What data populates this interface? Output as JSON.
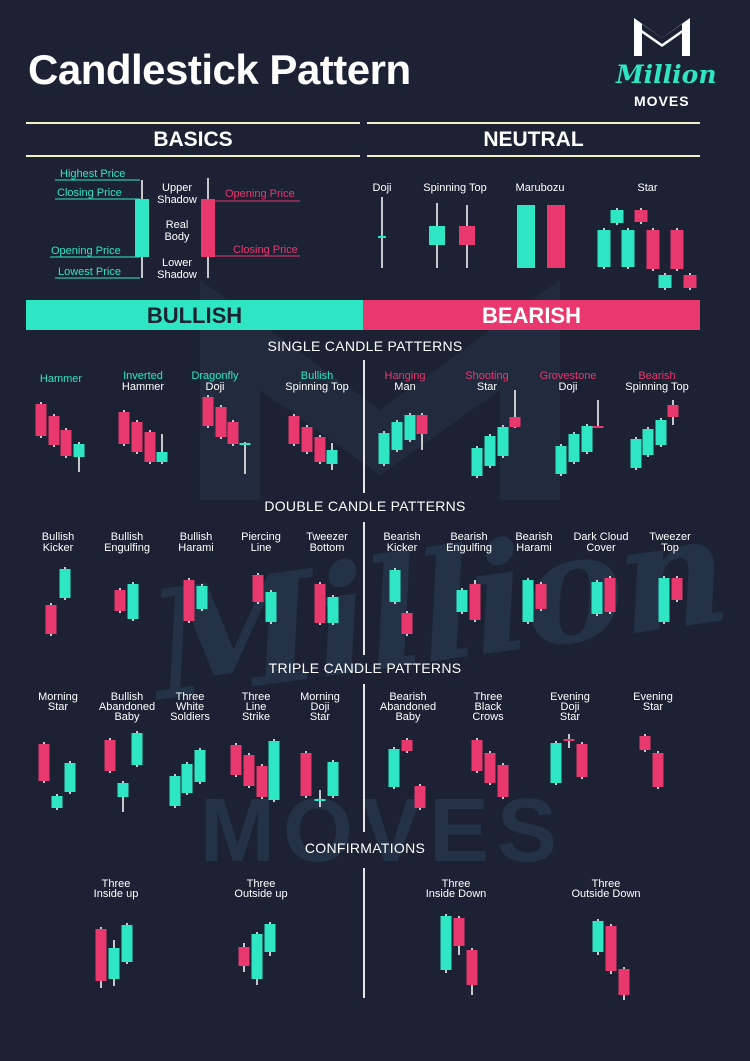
{
  "title": "Candlestick Pattern",
  "brand": {
    "script": "Million",
    "word": "MOVES"
  },
  "colors": {
    "bull": "#2ee6c4",
    "bear": "#e8386e",
    "background": "#1c2233",
    "wick": "#ffffff"
  },
  "basics": {
    "heading": "BASICS",
    "left_labels": [
      "Highest Price",
      "Closing Price",
      "Opening Price",
      "Lowest Price"
    ],
    "middle_labels": [
      "Upper Shadow",
      "Real Body",
      "Lower Shadow"
    ],
    "right_labels": [
      "Opening Price",
      "Closing Price"
    ]
  },
  "neutral": {
    "heading": "NEUTRAL",
    "items": [
      "Doji",
      "Spinning Top",
      "Marubozu",
      "Star"
    ]
  },
  "bullish_label": "BULLISH",
  "bearish_label": "BEARISH",
  "single": {
    "heading": "SINGLE CANDLE PATTERNS",
    "bullish": [
      {
        "line1": "Hammer",
        "line2": ""
      },
      {
        "line1": "Inverted",
        "line2": "Hammer"
      },
      {
        "line1": "Dragonfly",
        "line2": "Doji"
      },
      {
        "line1": "Bullish",
        "line2": "Spinning Top"
      }
    ],
    "bearish": [
      {
        "line1": "Hanging",
        "line2": "Man"
      },
      {
        "line1": "Shooting",
        "line2": "Star"
      },
      {
        "line1": "Grovestone",
        "line2": "Doji"
      },
      {
        "line1": "Bearish",
        "line2": "Spinning Top"
      }
    ]
  },
  "double": {
    "heading": "DOUBLE CANDLE PATTERNS",
    "bullish": [
      {
        "line1": "Bullish",
        "line2": "Kicker"
      },
      {
        "line1": "Bullish",
        "line2": "Engulfing"
      },
      {
        "line1": "Bullish",
        "line2": "Harami"
      },
      {
        "line1": "Piercing",
        "line2": "Line"
      },
      {
        "line1": "Tweezer",
        "line2": "Bottom"
      }
    ],
    "bearish": [
      {
        "line1": "Bearish",
        "line2": "Kicker"
      },
      {
        "line1": "Bearish",
        "line2": "Engulfing"
      },
      {
        "line1": "Bearish",
        "line2": "Harami"
      },
      {
        "line1": "Dark Cloud",
        "line2": "Cover"
      },
      {
        "line1": "Tweezer",
        "line2": "Top"
      }
    ]
  },
  "triple": {
    "heading": "TRIPLE CANDLE PATTERNS",
    "bullish": [
      {
        "line1": "Morning",
        "line2": "Star",
        "line3": ""
      },
      {
        "line1": "Bullish",
        "line2": "Abandoned",
        "line3": "Baby"
      },
      {
        "line1": "Three",
        "line2": "White",
        "line3": "Soldiers"
      },
      {
        "line1": "Three",
        "line2": "Line",
        "line3": "Strike"
      },
      {
        "line1": "Morning",
        "line2": "Doji",
        "line3": "Star"
      }
    ],
    "bearish": [
      {
        "line1": "Bearish",
        "line2": "Abandoned",
        "line3": "Baby"
      },
      {
        "line1": "Three",
        "line2": "Black",
        "line3": "Crows"
      },
      {
        "line1": "Evening",
        "line2": "Doji",
        "line3": "Star"
      },
      {
        "line1": "Evening",
        "line2": "Star",
        "line3": ""
      }
    ]
  },
  "confirmations": {
    "heading": "CONFIRMATIONS",
    "items": [
      {
        "line1": "Three",
        "line2": "Inside up"
      },
      {
        "line1": "Three",
        "line2": "Outside up"
      },
      {
        "line1": "Three",
        "line2": "Inside Down"
      },
      {
        "line1": "Three",
        "line2": "Outside Down"
      }
    ]
  }
}
